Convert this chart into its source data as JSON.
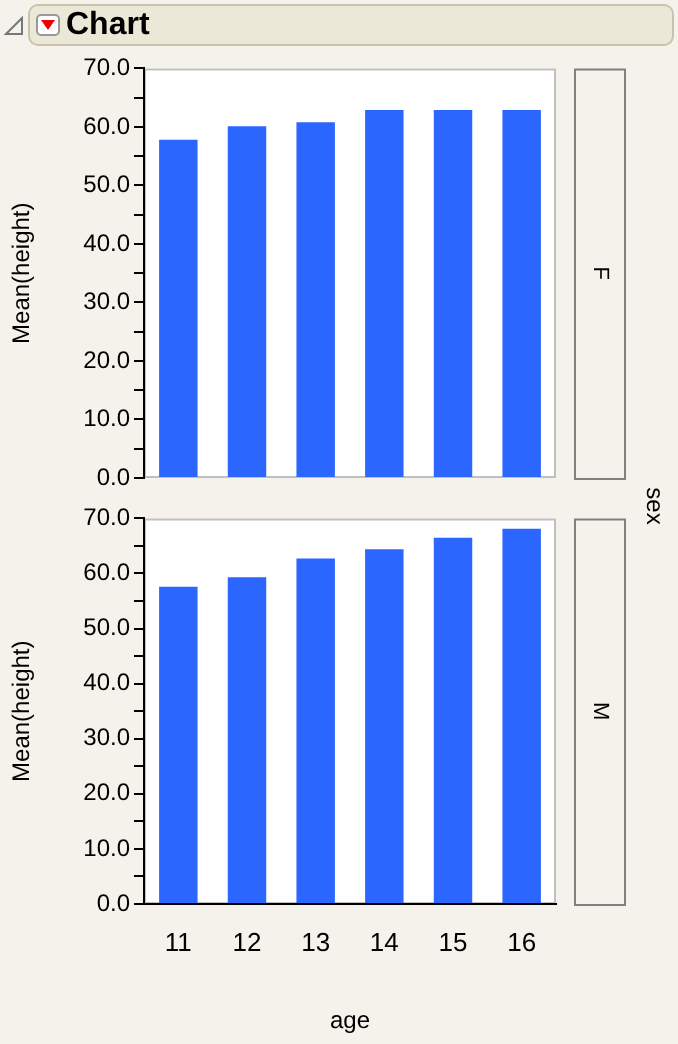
{
  "chart_data": [
    {
      "type": "bar",
      "title": "Chart",
      "categories": [
        "11",
        "12",
        "13",
        "14",
        "15",
        "16"
      ],
      "values": [
        57.8,
        60.1,
        60.8,
        62.9,
        62.9,
        62.9
      ],
      "color": "#2b66ff",
      "ylabel": "Mean(height)",
      "ylim": [
        0,
        70
      ],
      "yticks": [
        {
          "value": 0,
          "label": "0.0"
        },
        {
          "value": 5,
          "label": null
        },
        {
          "value": 10,
          "label": "10.0"
        },
        {
          "value": 15,
          "label": null
        },
        {
          "value": 20,
          "label": "20.0"
        },
        {
          "value": 25,
          "label": null
        },
        {
          "value": 30,
          "label": "30.0"
        },
        {
          "value": 35,
          "label": null
        },
        {
          "value": 40,
          "label": "40.0"
        },
        {
          "value": 45,
          "label": null
        },
        {
          "value": 50,
          "label": "50.0"
        },
        {
          "value": 55,
          "label": null
        },
        {
          "value": 60,
          "label": "60.0"
        },
        {
          "value": 65,
          "label": null
        },
        {
          "value": 70,
          "label": "70.0"
        }
      ],
      "tick_labels": "y",
      "grid": false,
      "legend": false,
      "annotations": [
        "F",
        "sex"
      ]
    },
    {
      "type": "bar",
      "categories": [
        "11",
        "12",
        "13",
        "14",
        "15",
        "16"
      ],
      "values": [
        57.6,
        59.3,
        62.7,
        64.4,
        66.5,
        68.1
      ],
      "color": "#2b66ff",
      "xlabel": "age",
      "ylabel": "Mean(height)",
      "ylim": [
        0,
        70
      ],
      "yticks": [
        {
          "value": 0,
          "label": "0.0"
        },
        {
          "value": 5,
          "label": null
        },
        {
          "value": 10,
          "label": "10.0"
        },
        {
          "value": 15,
          "label": null
        },
        {
          "value": 20,
          "label": "20.0"
        },
        {
          "value": 25,
          "label": null
        },
        {
          "value": 30,
          "label": "30.0"
        },
        {
          "value": 35,
          "label": null
        },
        {
          "value": 40,
          "label": "40.0"
        },
        {
          "value": 45,
          "label": null
        },
        {
          "value": 50,
          "label": "50.0"
        },
        {
          "value": 55,
          "label": null
        },
        {
          "value": 60,
          "label": "60.0"
        },
        {
          "value": 65,
          "label": null
        },
        {
          "value": 70,
          "label": "70.0"
        }
      ],
      "grid": false,
      "legend": false,
      "annotations": [
        "M"
      ]
    }
  ]
}
